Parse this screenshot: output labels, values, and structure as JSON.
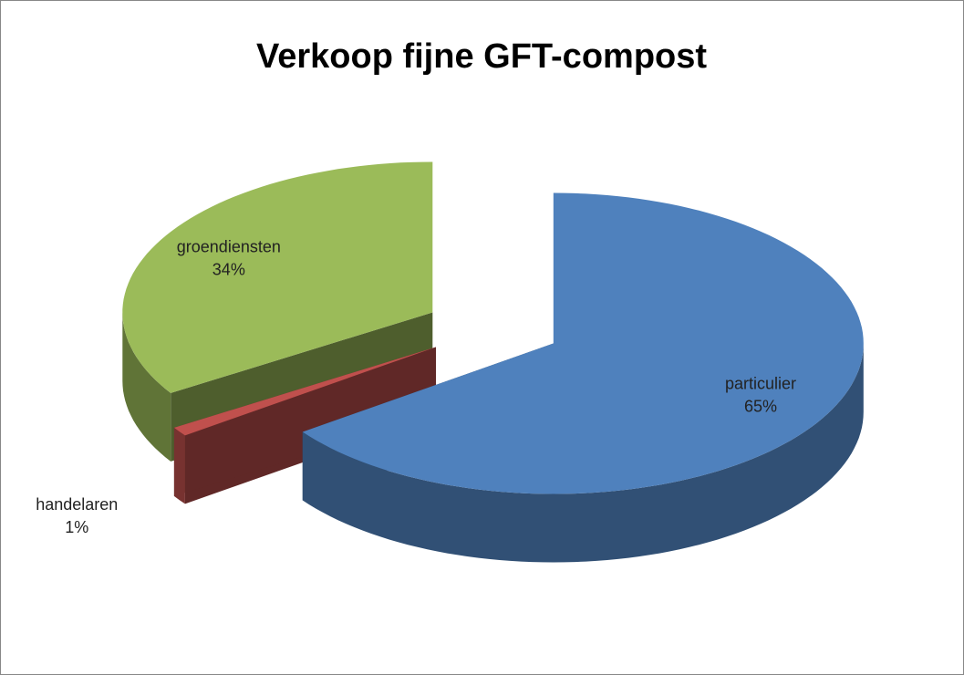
{
  "chart_data": {
    "type": "pie",
    "title": "Verkoop fijne GFT-compost",
    "categories": [
      "particulier",
      "handelaren",
      "groendiensten"
    ],
    "values": [
      65,
      1,
      34
    ],
    "value_labels": [
      "65%",
      "1%",
      "34%"
    ],
    "colors": [
      "#4f81bd",
      "#c0504d",
      "#9bbb59"
    ]
  }
}
